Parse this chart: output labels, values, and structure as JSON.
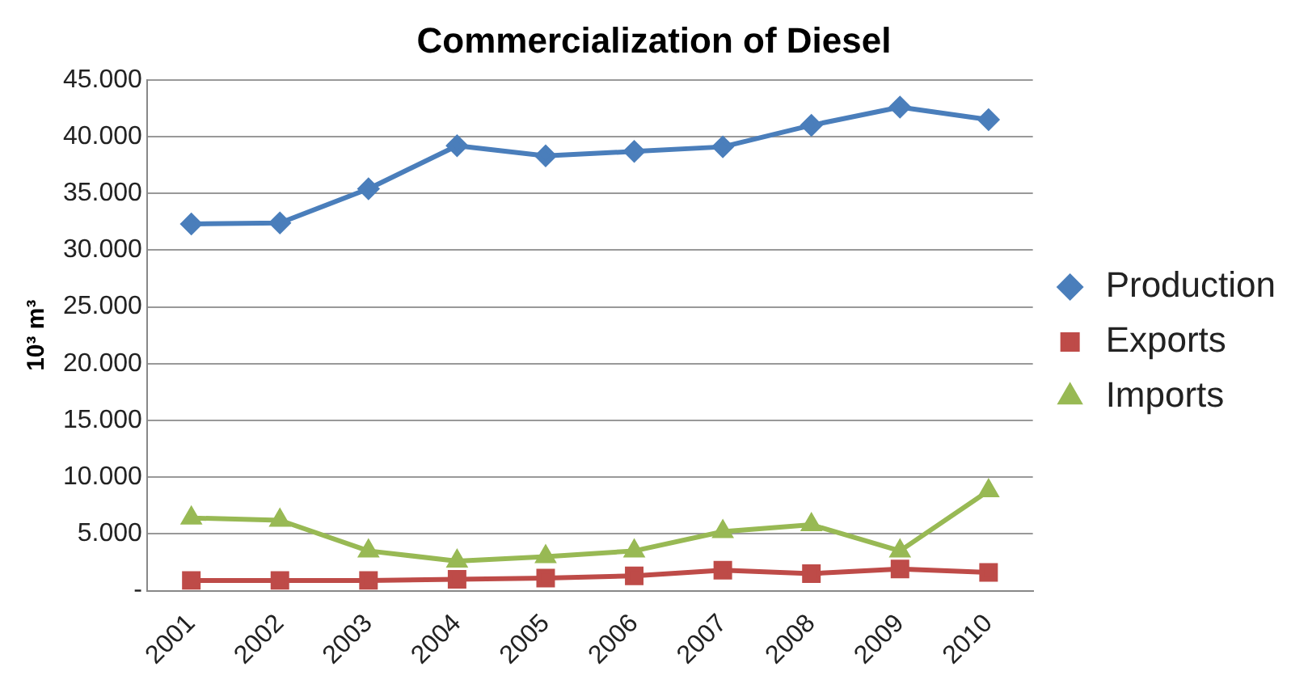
{
  "chart_data": {
    "type": "line",
    "title": "Commercialization of Diesel",
    "ylabel": "10³ m³",
    "categories": [
      "2001",
      "2002",
      "2003",
      "2004",
      "2005",
      "2006",
      "2007",
      "2008",
      "2009",
      "2010"
    ],
    "series": [
      {
        "name": "Production",
        "color": "#4a7ebb",
        "marker": "diamond",
        "values": [
          32300,
          32400,
          35400,
          39200,
          38300,
          38700,
          39100,
          41000,
          42600,
          41500
        ]
      },
      {
        "name": "Exports",
        "color": "#be4b48",
        "marker": "square",
        "values": [
          900,
          900,
          900,
          1000,
          1100,
          1300,
          1800,
          1500,
          1900,
          1600
        ]
      },
      {
        "name": "Imports",
        "color": "#98b954",
        "marker": "triangle",
        "values": [
          6400,
          6200,
          3500,
          2600,
          3000,
          3500,
          5200,
          5800,
          3500,
          8800
        ]
      }
    ],
    "ylim": [
      0,
      45000
    ],
    "yticks": [
      {
        "value": 0,
        "label": "-"
      },
      {
        "value": 5000,
        "label": "5.000"
      },
      {
        "value": 10000,
        "label": "10.000"
      },
      {
        "value": 15000,
        "label": "15.000"
      },
      {
        "value": 20000,
        "label": "20.000"
      },
      {
        "value": 25000,
        "label": "25.000"
      },
      {
        "value": 30000,
        "label": "30.000"
      },
      {
        "value": 35000,
        "label": "35.000"
      },
      {
        "value": 40000,
        "label": "40.000"
      },
      {
        "value": 45000,
        "label": "45.000"
      }
    ],
    "grid": "y",
    "legend": "right",
    "line_style": "solid"
  }
}
